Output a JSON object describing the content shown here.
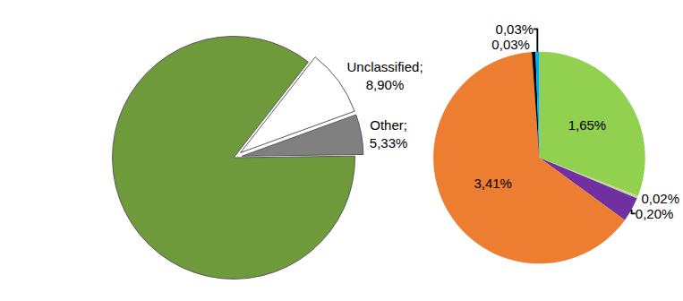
{
  "chart_data": [
    {
      "type": "pie",
      "categories": [
        "Unclassified;",
        "Other;",
        null
      ],
      "values": [
        8.9,
        5.33,
        85.77
      ],
      "value_labels": [
        "8,90%",
        "5,33%",
        null
      ],
      "colors": [
        "#ffffff",
        "#808080",
        "#6f9a3c"
      ],
      "data_labels": true
    },
    {
      "type": "pie",
      "categories": [
        null,
        null,
        null,
        null,
        null,
        null
      ],
      "values": [
        1.65,
        0.02,
        0.2,
        3.41,
        0.03,
        0.03
      ],
      "value_labels": [
        "1,65%",
        "0,02%",
        "0,20%",
        "3,41%",
        "0,03%",
        "0,03%"
      ],
      "colors": [
        "#92d050",
        "#c4d79b",
        "#7030a0",
        "#ed7d31",
        "#000000",
        "#00b0f0"
      ],
      "data_labels": true
    }
  ]
}
